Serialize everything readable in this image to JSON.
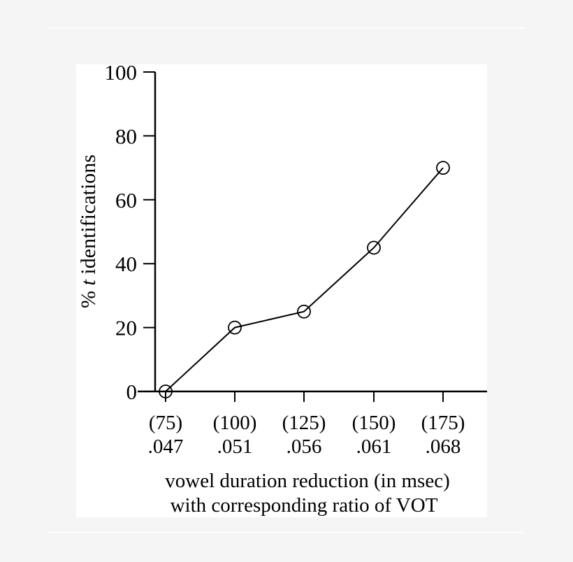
{
  "chart_data": {
    "type": "line",
    "categories": [
      "(75)\n.047",
      "(100)\n.051",
      "(125)\n.056",
      "(150)\n.061",
      "(175)\n.068"
    ],
    "category_lines": [
      [
        "(75)",
        ".047"
      ],
      [
        "(100)",
        ".051"
      ],
      [
        "(125)",
        ".056"
      ],
      [
        "(150)",
        ".061"
      ],
      [
        "(175)",
        ".068"
      ]
    ],
    "values": [
      0,
      20,
      25,
      45,
      70
    ],
    "ylabel_parts": [
      "% ",
      "t",
      " identifications"
    ],
    "xlabel_lines": [
      "vowel duration reduction (in msec)",
      "with corresponding ratio of VOT"
    ],
    "ylim": [
      0,
      100
    ],
    "yticks": [
      0,
      20,
      40,
      60,
      80,
      100
    ],
    "marker": "open-circle",
    "grid": false,
    "colors": {
      "line": "#000000",
      "background": "#ffffff",
      "page": "#f5f5f5"
    }
  }
}
